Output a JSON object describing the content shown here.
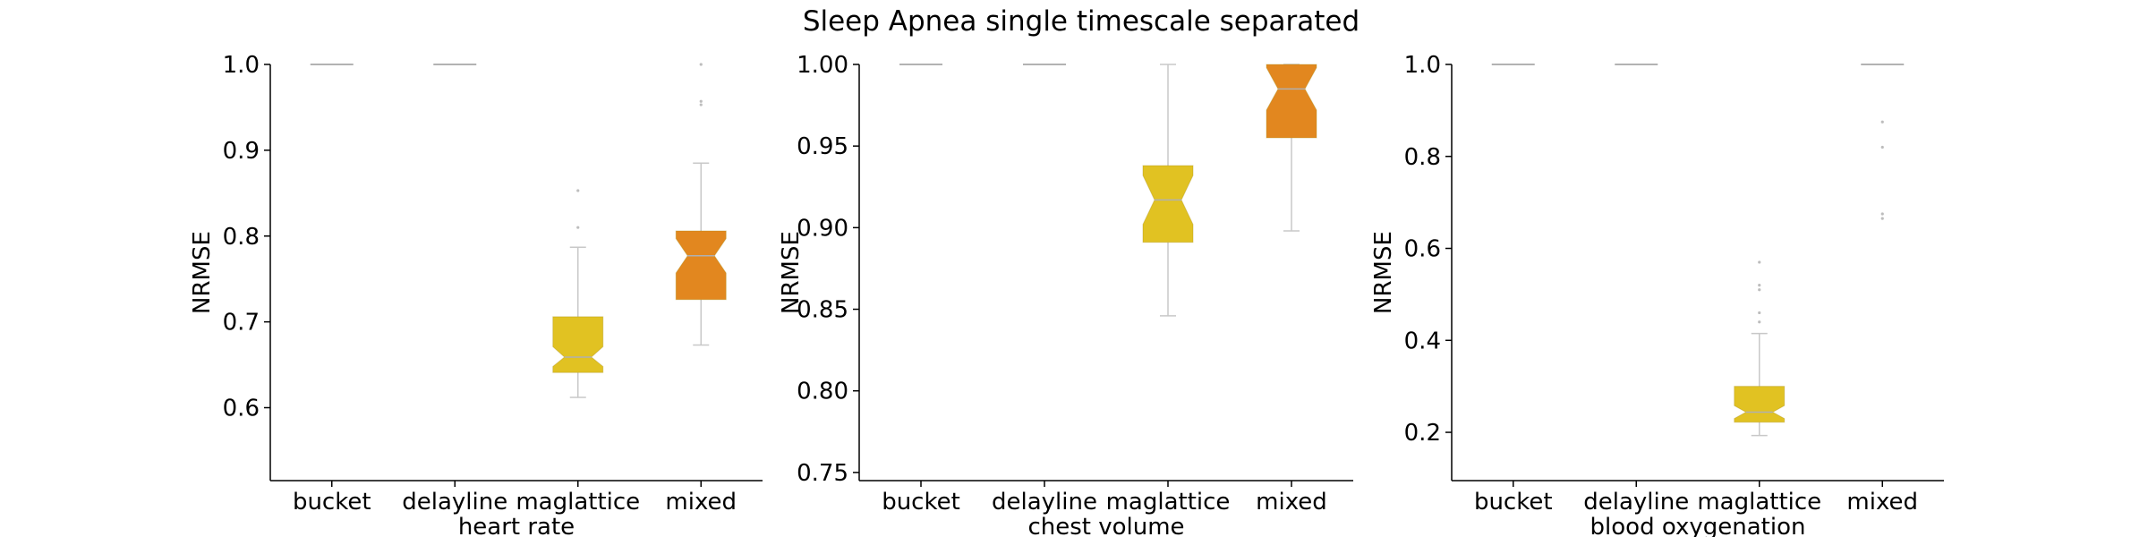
{
  "figure": {
    "title": "Sleep Apnea single timescale separated"
  },
  "colors": {
    "box_yellow": "#E1C222",
    "box_orange": "#E2871F",
    "whisker": "#c8c8c8",
    "median_line": "#b0b0b0",
    "outlier": "#bdbdbd",
    "axis": "#000000"
  },
  "chart_data": [
    {
      "type": "box",
      "xlabel": "heart rate",
      "ylabel": "NRMSE",
      "ylim": [
        0.515,
        1.0
      ],
      "yticks": [
        0.6,
        0.7,
        0.8,
        0.9,
        1.0
      ],
      "ytick_labels": [
        "0.6",
        "0.7",
        "0.8",
        "0.9",
        "1.0"
      ],
      "categories": [
        "bucket",
        "delayline",
        "maglattice",
        "mixed"
      ],
      "boxes": [
        {
          "name": "bucket",
          "whisker_low": 1.0,
          "q1": 1.0,
          "median": 1.0,
          "q3": 1.0,
          "whisker_high": 1.0,
          "notch_low": 1.0,
          "notch_high": 1.0,
          "outliers": [],
          "color": "#999999"
        },
        {
          "name": "delayline",
          "whisker_low": 1.0,
          "q1": 1.0,
          "median": 1.0,
          "q3": 1.0,
          "whisker_high": 1.0,
          "notch_low": 1.0,
          "notch_high": 1.0,
          "outliers": [],
          "color": "#999999"
        },
        {
          "name": "maglattice",
          "whisker_low": 0.612,
          "q1": 0.641,
          "median": 0.659,
          "q3": 0.706,
          "whisker_high": 0.787,
          "notch_low": 0.648,
          "notch_high": 0.671,
          "outliers": [
            0.81,
            0.853
          ],
          "color": "#E1C222"
        },
        {
          "name": "mixed",
          "whisker_low": 0.673,
          "q1": 0.726,
          "median": 0.777,
          "q3": 0.806,
          "whisker_high": 0.885,
          "notch_low": 0.757,
          "notch_high": 0.797,
          "outliers": [
            0.953,
            0.957,
            1.0
          ],
          "color": "#E2871F"
        }
      ]
    },
    {
      "type": "box",
      "xlabel": "chest volume",
      "ylabel": "NRMSE",
      "ylim": [
        0.745,
        1.0
      ],
      "yticks": [
        0.75,
        0.8,
        0.85,
        0.9,
        0.95,
        1.0
      ],
      "ytick_labels": [
        "0.75",
        "0.80",
        "0.85",
        "0.90",
        "0.95",
        "1.00"
      ],
      "categories": [
        "bucket",
        "delayline",
        "maglattice",
        "mixed"
      ],
      "boxes": [
        {
          "name": "bucket",
          "whisker_low": 1.0,
          "q1": 1.0,
          "median": 1.0,
          "q3": 1.0,
          "whisker_high": 1.0,
          "notch_low": 1.0,
          "notch_high": 1.0,
          "outliers": [],
          "color": "#999999"
        },
        {
          "name": "delayline",
          "whisker_low": 1.0,
          "q1": 1.0,
          "median": 1.0,
          "q3": 1.0,
          "whisker_high": 1.0,
          "notch_low": 1.0,
          "notch_high": 1.0,
          "outliers": [],
          "color": "#999999"
        },
        {
          "name": "maglattice",
          "whisker_low": 0.846,
          "q1": 0.891,
          "median": 0.917,
          "q3": 0.938,
          "whisker_high": 1.0,
          "notch_low": 0.902,
          "notch_high": 0.932,
          "outliers": [],
          "color": "#E1C222"
        },
        {
          "name": "mixed",
          "whisker_low": 0.898,
          "q1": 0.955,
          "median": 0.985,
          "q3": 1.0,
          "whisker_high": 1.0,
          "notch_low": 0.972,
          "notch_high": 0.998,
          "outliers": [],
          "color": "#E2871F"
        }
      ]
    },
    {
      "type": "box",
      "xlabel": "blood oxygenation",
      "ylabel": "NRMSE",
      "ylim": [
        0.095,
        1.0
      ],
      "yticks": [
        0.2,
        0.4,
        0.6,
        0.8,
        1.0
      ],
      "ytick_labels": [
        "0.2",
        "0.4",
        "0.6",
        "0.8",
        "1.0"
      ],
      "categories": [
        "bucket",
        "delayline",
        "maglattice",
        "mixed"
      ],
      "boxes": [
        {
          "name": "bucket",
          "whisker_low": 1.0,
          "q1": 1.0,
          "median": 1.0,
          "q3": 1.0,
          "whisker_high": 1.0,
          "notch_low": 1.0,
          "notch_high": 1.0,
          "outliers": [],
          "color": "#999999"
        },
        {
          "name": "delayline",
          "whisker_low": 1.0,
          "q1": 1.0,
          "median": 1.0,
          "q3": 1.0,
          "whisker_high": 1.0,
          "notch_low": 1.0,
          "notch_high": 1.0,
          "outliers": [],
          "color": "#999999"
        },
        {
          "name": "maglattice",
          "whisker_low": 0.193,
          "q1": 0.222,
          "median": 0.244,
          "q3": 0.3,
          "whisker_high": 0.415,
          "notch_low": 0.23,
          "notch_high": 0.258,
          "outliers": [
            0.44,
            0.46,
            0.51,
            0.52,
            0.57
          ],
          "color": "#E1C222"
        },
        {
          "name": "mixed",
          "whisker_low": 1.0,
          "q1": 1.0,
          "median": 1.0,
          "q3": 1.0,
          "whisker_high": 1.0,
          "notch_low": 1.0,
          "notch_high": 1.0,
          "outliers": [
            0.665,
            0.675,
            0.82,
            0.875
          ],
          "color": "#999999"
        }
      ]
    }
  ]
}
